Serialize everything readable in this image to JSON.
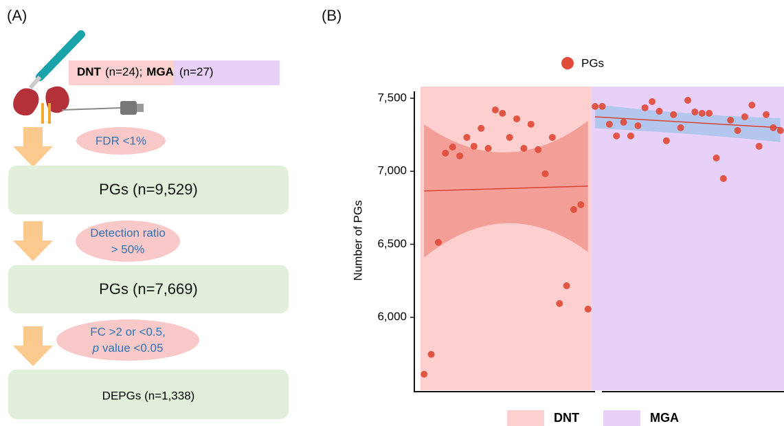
{
  "panel_a": {
    "label": "(A)",
    "cohort": {
      "dnt": "DNT",
      "dnt_n": "(n=24);",
      "mga": "MGA",
      "mga_n": "(n=27)"
    },
    "filters": [
      {
        "lines": [
          "FDR <1%"
        ]
      },
      {
        "lines": [
          "Detection ratio",
          "> 50%"
        ]
      },
      {
        "lines": [
          "FC >2 or <0.5,"
        ],
        "italic": "p",
        "rest": "value <0.05"
      }
    ],
    "boxes": [
      "PGs (n=9,529)",
      "PGs (n=7,669)",
      "DEPGs (n=1,338)"
    ]
  },
  "chart_data": {
    "type": "scatter",
    "panel_label": "(B)",
    "y_label": "Number of PGs",
    "xlim": [
      0.5,
      51.5
    ],
    "ylim": [
      5500,
      7580
    ],
    "yticks": [
      {
        "value": 6000,
        "label": "6,000"
      },
      {
        "value": 6500,
        "label": "6,500"
      },
      {
        "value": 7000,
        "label": "7,000"
      },
      {
        "value": 7500,
        "label": "7,500"
      }
    ],
    "legend": "top",
    "series": [
      {
        "name": "PGs",
        "color": "#e04b3a",
        "x": [
          1,
          2,
          3,
          4,
          5,
          6,
          7,
          8,
          9,
          10,
          11,
          12,
          13,
          14,
          15,
          16,
          17,
          18,
          19,
          20,
          21,
          22,
          23,
          24,
          25,
          26,
          27,
          28,
          29,
          30,
          31,
          32,
          33,
          34,
          35,
          36,
          37,
          38,
          39,
          40,
          41,
          42,
          43,
          44,
          45,
          46,
          47,
          48,
          49,
          50,
          51
        ],
        "values": [
          5610,
          5746,
          6513,
          7124,
          7166,
          7105,
          7232,
          7171,
          7294,
          7157,
          7420,
          7397,
          7232,
          7359,
          7157,
          7322,
          7148,
          6983,
          7232,
          6094,
          6216,
          6738,
          6771,
          6056,
          7444,
          7444,
          7322,
          7242,
          7336,
          7242,
          7312,
          7435,
          7477,
          7411,
          7209,
          7388,
          7298,
          7486,
          7406,
          7397,
          7397,
          7091,
          6950,
          7350,
          7279,
          7373,
          7453,
          7171,
          7388,
          7298,
          7279
        ]
      }
    ],
    "groups": [
      {
        "name": "DNT",
        "color": "#fdcfcf",
        "band_color": "#ee8a80",
        "line_color": "#d9412f",
        "x_range": [
          0.5,
          24.5
        ],
        "fit": {
          "x": [
            1,
            12.5,
            24
          ],
          "values": [
            6865,
            6881,
            6898
          ],
          "lower": [
            6409,
            6644,
            6447
          ],
          "upper": [
            7322,
            7129,
            7345
          ]
        }
      },
      {
        "name": "MGA",
        "color": "#e8d1f9",
        "band_color": "#9cc3ea",
        "line_color": "#d9412f",
        "x_range": [
          24.5,
          51.5
        ],
        "fit": {
          "x": [
            25,
            38,
            51
          ],
          "values": [
            7373,
            7335,
            7298
          ],
          "lower": [
            7294,
            7256,
            7200
          ],
          "upper": [
            7458,
            7397,
            7364
          ]
        }
      }
    ]
  }
}
